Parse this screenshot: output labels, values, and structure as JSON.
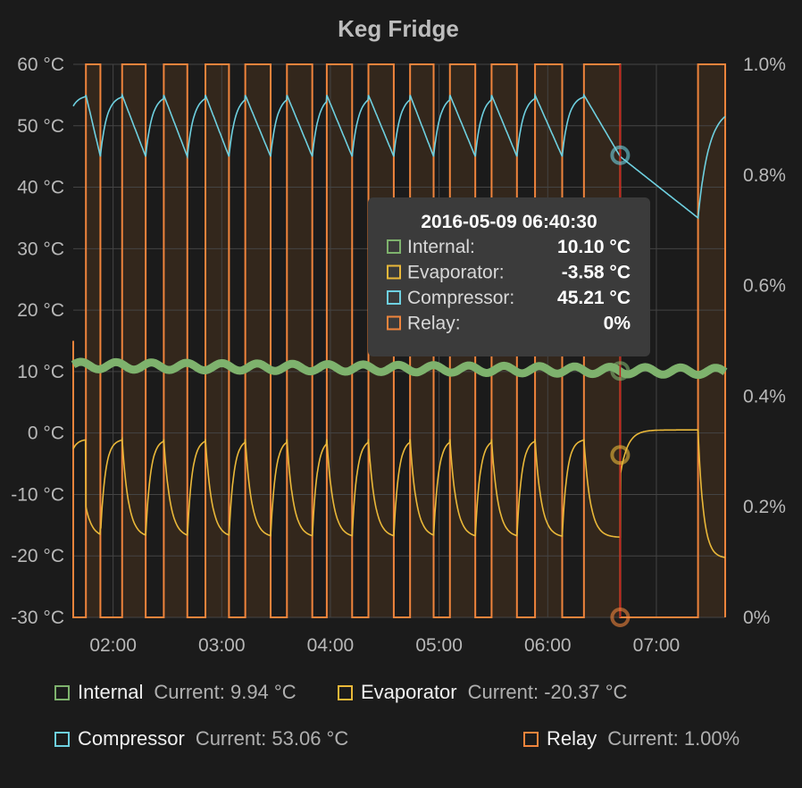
{
  "chart_data": {
    "type": "line",
    "title": "Keg Fridge",
    "x_ticks": [
      "02:00",
      "03:00",
      "04:00",
      "05:00",
      "06:00",
      "07:00"
    ],
    "y_left": {
      "ticks": [
        "60 °C",
        "50 °C",
        "40 °C",
        "30 °C",
        "20 °C",
        "10 °C",
        "0 °C",
        "-10 °C",
        "-20 °C",
        "-30 °C"
      ],
      "ylim": [
        -30,
        60
      ]
    },
    "y_right": {
      "ticks": [
        "1.0%",
        "0.8%",
        "0.6%",
        "0.4%",
        "0.2%",
        "0%"
      ],
      "ylim": [
        0,
        1
      ]
    },
    "x_range": [
      "01:38",
      "07:38"
    ],
    "grid": true,
    "series": [
      {
        "name": "Internal",
        "color": "#7eb26d",
        "current": "Current: 9.94 °C"
      },
      {
        "name": "Evaporator",
        "color": "#eab839",
        "current": "Current: -20.37 °C"
      },
      {
        "name": "Compressor",
        "color": "#6ed0e0",
        "current": "Current: 53.06 °C"
      },
      {
        "name": "Relay",
        "color": "#ef843c",
        "current": "Current: 1.00%"
      }
    ],
    "relay_on_intervals": [
      [
        "01:45",
        "01:53"
      ],
      [
        "02:05",
        "02:18"
      ],
      [
        "02:28",
        "02:41"
      ],
      [
        "02:51",
        "03:04"
      ],
      [
        "03:13",
        "03:27"
      ],
      [
        "03:36",
        "03:50"
      ],
      [
        "03:58",
        "04:12"
      ],
      [
        "04:21",
        "04:35"
      ],
      [
        "04:44",
        "04:57"
      ],
      [
        "05:06",
        "05:20"
      ],
      [
        "05:29",
        "05:43"
      ],
      [
        "05:53",
        "06:08"
      ],
      [
        "06:20",
        "06:40"
      ],
      [
        "07:23",
        "07:38"
      ]
    ],
    "internal_level": [
      11.0,
      10.0
    ],
    "evaporator": {
      "peak": -1,
      "trough": -17,
      "rest_level": 0.5,
      "final": -20.4
    },
    "compressor": {
      "peak": 55,
      "trough": 45,
      "post_cutoff_min": 35,
      "final": 53
    }
  },
  "tooltip": {
    "time": "2016-05-09 06:40:30",
    "rows": [
      {
        "label": "Internal:",
        "value": "10.10 °C",
        "color": "#7eb26d"
      },
      {
        "label": "Evaporator:",
        "value": "-3.58 °C",
        "color": "#eab839"
      },
      {
        "label": "Compressor:",
        "value": "45.21 °C",
        "color": "#6ed0e0"
      },
      {
        "label": "Relay:",
        "value": "0%",
        "color": "#ef843c"
      }
    ]
  }
}
